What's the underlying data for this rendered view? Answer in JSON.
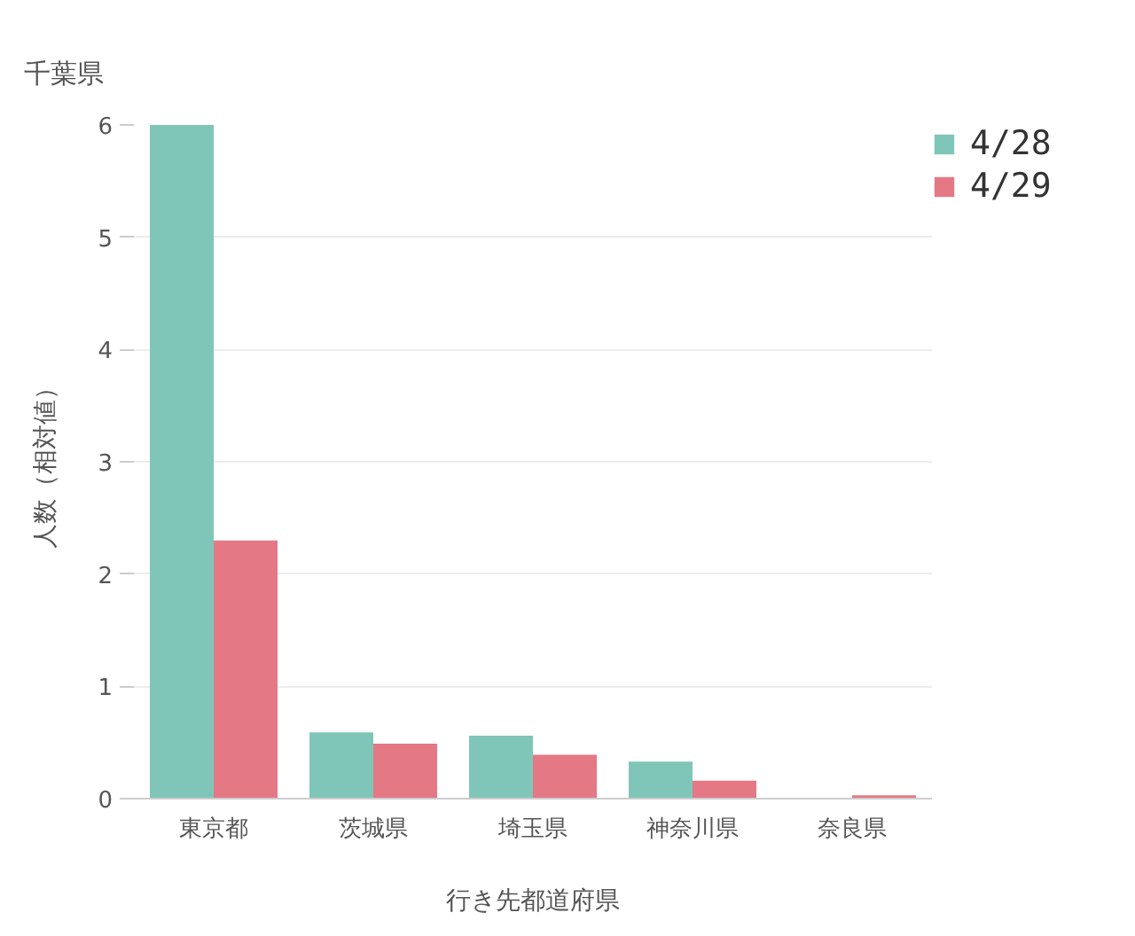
{
  "chart_data": {
    "type": "bar",
    "title": "千葉県",
    "xlabel": "行き先都道府県",
    "ylabel": "人数（相対値）",
    "categories": [
      "東京都",
      "茨城県",
      "埼玉県",
      "神奈川県",
      "奈良県"
    ],
    "series": [
      {
        "name": "4/28",
        "color": "#7fc6b9",
        "values": [
          6.0,
          0.59,
          0.56,
          0.33,
          0
        ]
      },
      {
        "name": "4/29",
        "color": "#e47885",
        "values": [
          2.3,
          0.49,
          0.39,
          0.16,
          0.03
        ]
      }
    ],
    "ylim": [
      0,
      6
    ],
    "yticks": [
      0,
      1,
      2,
      3,
      4,
      5,
      6
    ],
    "grid": "y",
    "legend": "top right"
  }
}
